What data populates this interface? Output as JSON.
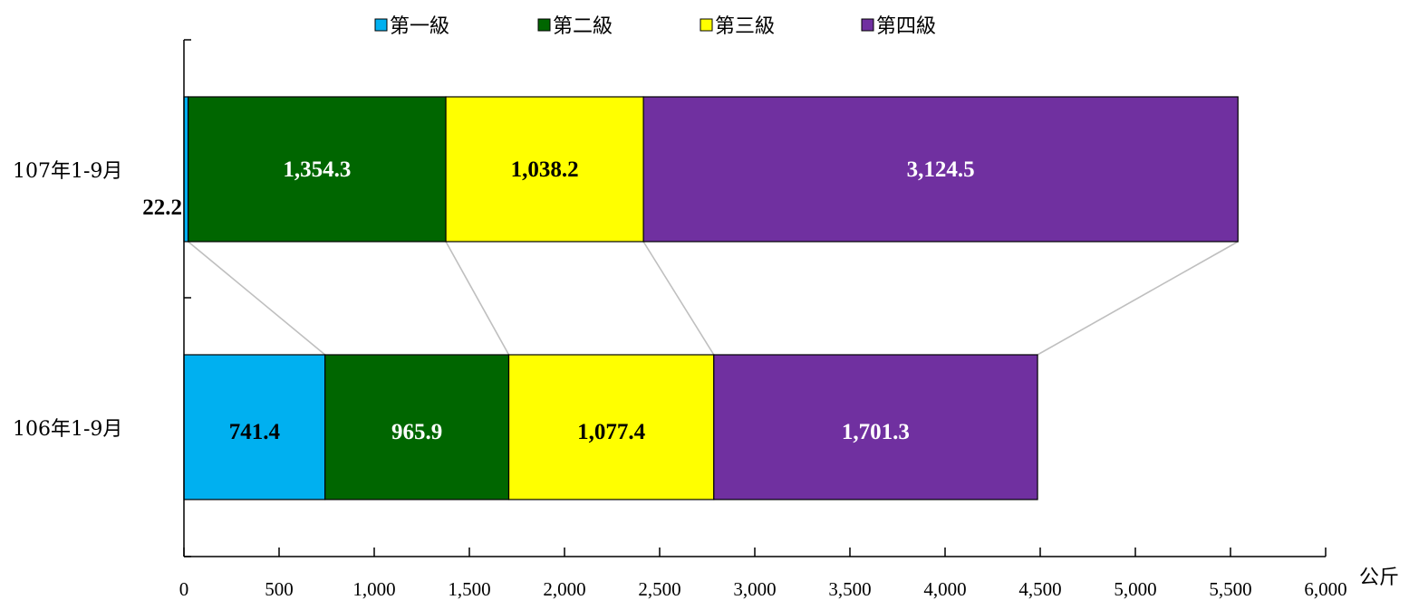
{
  "chart_data": {
    "type": "bar",
    "orientation": "horizontal",
    "stacked": true,
    "categories": [
      "107年1-9月",
      "106年1-9月"
    ],
    "series": [
      {
        "name": "第一級",
        "color": "#00B0F0",
        "label_color": "#000000",
        "values": [
          22.2,
          741.4
        ],
        "labels": [
          "22.2",
          "741.4"
        ]
      },
      {
        "name": "第二級",
        "color": "#006600",
        "label_color": "#FFFFFF",
        "values": [
          1354.3,
          965.9
        ],
        "labels": [
          "1,354.3",
          "965.9"
        ]
      },
      {
        "name": "第三級",
        "color": "#FFFF00",
        "label_color": "#000000",
        "values": [
          1038.2,
          1077.4
        ],
        "labels": [
          "1,038.2",
          "1,077.4"
        ]
      },
      {
        "name": "第四級",
        "color": "#7030A0",
        "label_color": "#FFFFFF",
        "values": [
          3124.5,
          1701.3
        ],
        "labels": [
          "3,124.5",
          "1,701.3"
        ]
      }
    ],
    "xlim": [
      0,
      6000
    ],
    "xticks": [
      0,
      500,
      1000,
      1500,
      2000,
      2500,
      3000,
      3500,
      4000,
      4500,
      5000,
      5500,
      6000
    ],
    "xtick_labels": [
      "0",
      "500",
      "1,000",
      "1,500",
      "2,000",
      "2,500",
      "3,000",
      "3,500",
      "4,000",
      "4,500",
      "5,000",
      "5,500",
      "6,000"
    ],
    "xunit": "公斤",
    "legend_position": "top",
    "series_lines": true,
    "grid": false
  }
}
